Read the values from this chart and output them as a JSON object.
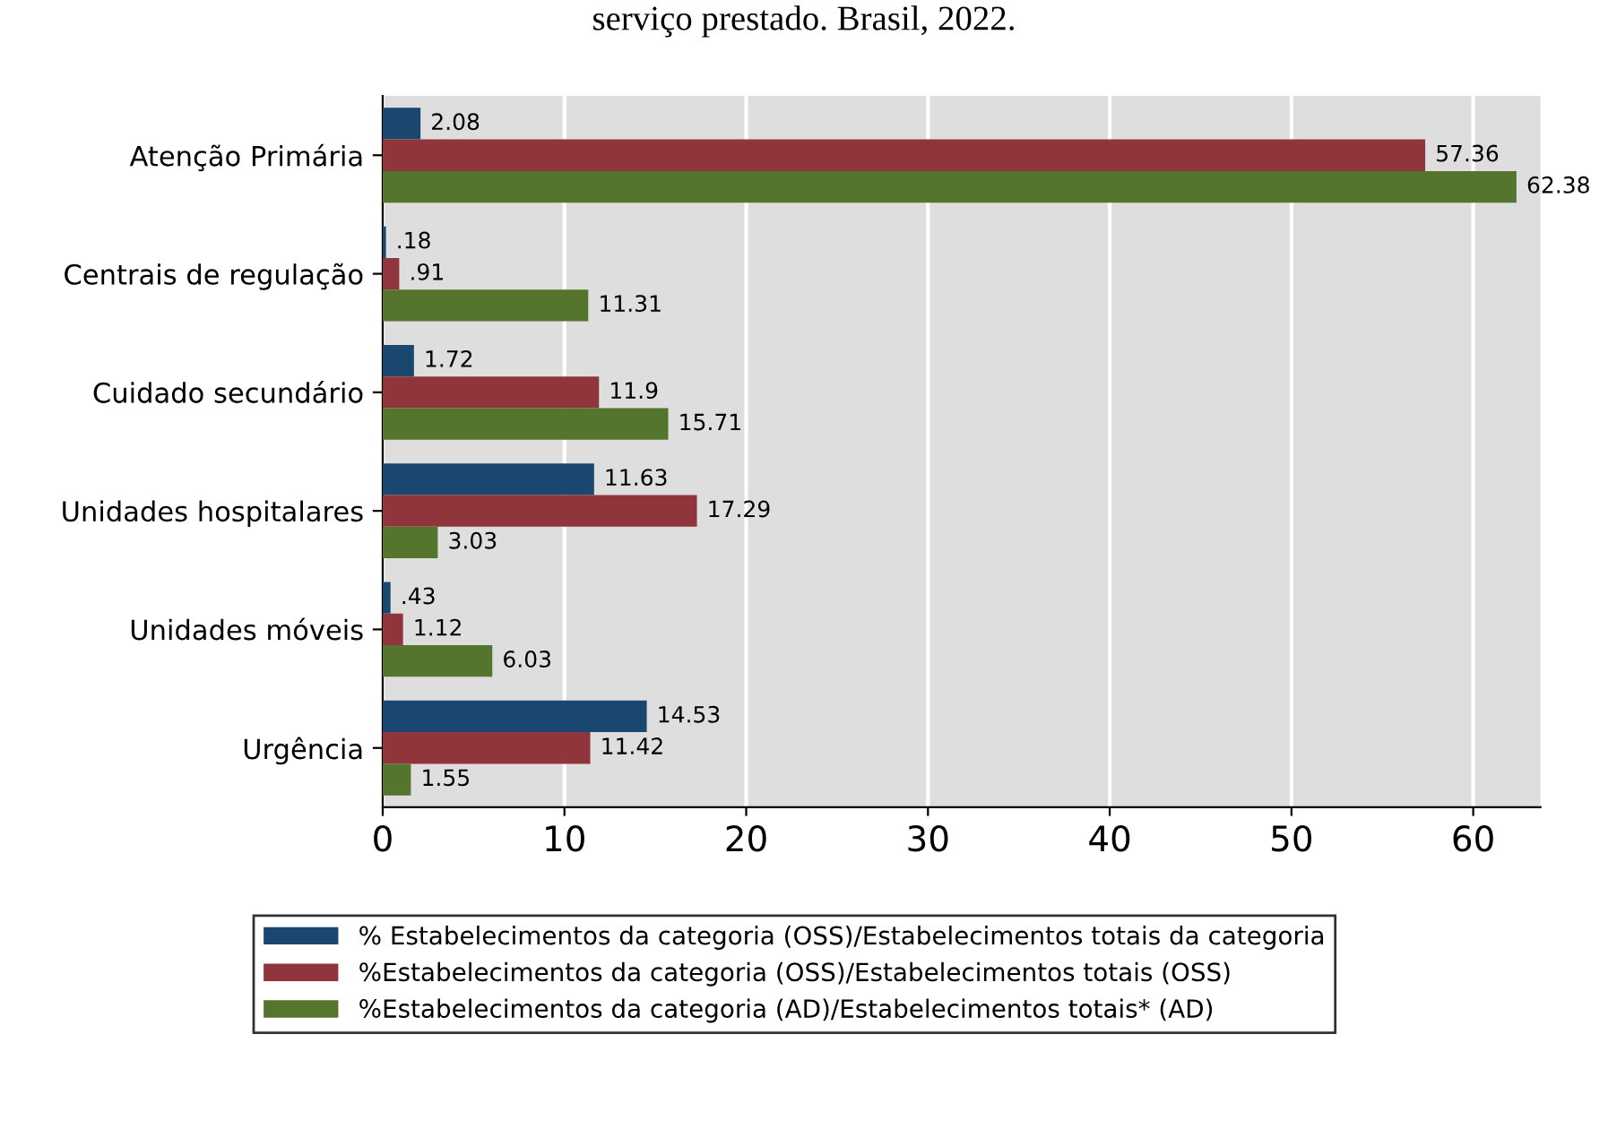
{
  "chart_data": {
    "type": "bar",
    "orientation": "horizontal",
    "title": "serviço prestado. Brasil, 2022.",
    "categories": [
      "Atenção Primária",
      "Centrais de regulação",
      "Cuidado secundário",
      "Unidades hospitalares",
      "Unidades móveis",
      "Urgência"
    ],
    "series": [
      {
        "name": "% Estabelecimentos da categoria (OSS)/Estabelecimentos totais da categoria",
        "color": "#1a476f",
        "values": [
          2.08,
          0.18,
          1.72,
          11.63,
          0.43,
          14.53
        ],
        "value_labels": [
          "2.08",
          ".18",
          "1.72",
          "11.63",
          ".43",
          "14.53"
        ]
      },
      {
        "name": "%Estabelecimentos da categoria (OSS)/Estabelecimentos totais (OSS)",
        "color": "#90353b",
        "values": [
          57.36,
          0.91,
          11.9,
          17.29,
          1.12,
          11.42
        ],
        "value_labels": [
          "57.36",
          ".91",
          "11.9",
          "17.29",
          "1.12",
          "11.42"
        ]
      },
      {
        "name": "%Estabelecimentos da categoria (AD)/Estabelecimentos totais* (AD)",
        "color": "#55752f",
        "values": [
          62.38,
          11.31,
          15.71,
          3.03,
          6.03,
          1.55
        ],
        "value_labels": [
          "62.38",
          "11.31",
          "15.71",
          "3.03",
          "6.03",
          "1.55"
        ]
      }
    ],
    "xlim": [
      0,
      63.7
    ],
    "xticks": [
      0,
      10,
      20,
      30,
      40,
      50,
      60
    ],
    "grid": "x",
    "legend": "bottom"
  }
}
